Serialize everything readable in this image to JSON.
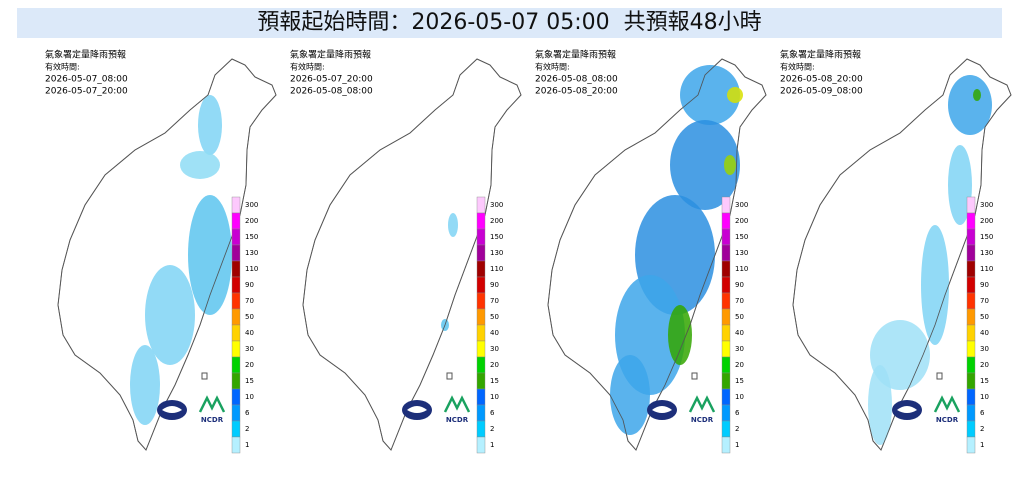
{
  "title": "預報起始時間：2026-05-07 05:00  共預報48小時",
  "panels": [
    {
      "header": "氣象署定量降雨預報",
      "valid_label": "有效時間:",
      "times": [
        "2026-05-07_08:00",
        "2026-05-07_20:00"
      ],
      "logo_text": "NCDR"
    },
    {
      "header": "氣象署定量降雨預報",
      "valid_label": "有效時間:",
      "times": [
        "2026-05-07_20:00",
        "2026-05-08_08:00"
      ],
      "logo_text": "NCDR"
    },
    {
      "header": "氣象署定量降雨預報",
      "valid_label": "有效時間:",
      "times": [
        "2026-05-08_08:00",
        "2026-05-08_20:00"
      ],
      "logo_text": "NCDR"
    },
    {
      "header": "氣象署定量降雨預報",
      "valid_label": "有效時間:",
      "times": [
        "2026-05-08_20:00",
        "2026-05-09_08:00"
      ],
      "logo_text": "NCDR"
    }
  ],
  "colorbar": {
    "levels": [
      300,
      200,
      150,
      130,
      110,
      90,
      70,
      50,
      40,
      30,
      20,
      15,
      10,
      6,
      2,
      1
    ],
    "colors": [
      "#fdc9fd",
      "#ff00ff",
      "#c800d2",
      "#a0009a",
      "#a00000",
      "#d20000",
      "#ff3300",
      "#ff9900",
      "#ffd200",
      "#ffff00",
      "#00d200",
      "#33a600",
      "#0066ff",
      "#0099ff",
      "#00ccff",
      "#b5f0ff"
    ]
  }
}
